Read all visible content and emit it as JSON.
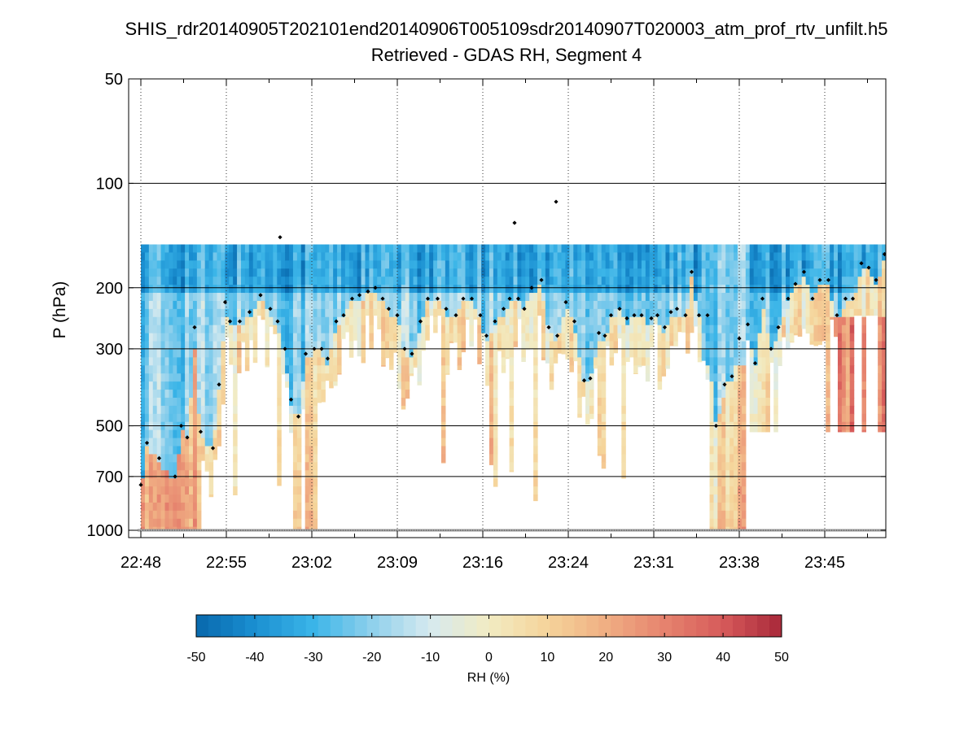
{
  "chart_data": {
    "type": "heatmap",
    "title": "SHIS_rdr20140905T202101end20140906T005109sdr20140907T020003_atm_prof_rtv_unfilt.h5",
    "subtitle": "Retrieved - GDAS RH, Segment 4",
    "ylabel": "P (hPa)",
    "xlabel": "",
    "y_scale": "log",
    "y_reversed": true,
    "ylim": [
      50,
      1050
    ],
    "y_ticks": [
      50,
      100,
      200,
      300,
      500,
      700,
      1000
    ],
    "y_tick_labels": [
      "50",
      "100",
      "200",
      "300",
      "500",
      "700",
      "1000"
    ],
    "x_unit": "minutes since 22:48",
    "xlim": [
      -1,
      61
    ],
    "x_ticks": [
      0,
      7,
      14,
      21,
      28,
      35,
      42,
      49,
      56
    ],
    "x_tick_labels": [
      "22:48",
      "22:55",
      "23:02",
      "23:09",
      "23:16",
      "23:24",
      "23:31",
      "23:38",
      "23:45"
    ],
    "grid": true,
    "field_top_hPa": 150,
    "colorbar": {
      "label": "RH (%)",
      "range": [
        -50,
        50
      ],
      "ticks": [
        "-50",
        "-40",
        "-30",
        "-20",
        "-10",
        "0",
        "10",
        "20",
        "30",
        "40",
        "50"
      ],
      "colors": [
        "#0868ac",
        "#1a8fd1",
        "#3bb5e8",
        "#8fd0ec",
        "#d6eaef",
        "#f2ebc2",
        "#f5d49a",
        "#f0ae83",
        "#e6836e",
        "#d65a5a",
        "#a8283a"
      ]
    },
    "tropopause_pressure_hPa": [
      [
        0,
        740
      ],
      [
        0.5,
        560
      ],
      [
        1.5,
        620
      ],
      [
        2.8,
        700
      ],
      [
        3.3,
        500
      ],
      [
        3.8,
        540
      ],
      [
        4.4,
        260
      ],
      [
        4.9,
        520
      ],
      [
        5.9,
        580
      ],
      [
        6.4,
        380
      ],
      [
        6.9,
        220
      ],
      [
        7.3,
        250
      ],
      [
        8.1,
        250
      ],
      [
        8.9,
        235
      ],
      [
        9.8,
        210
      ],
      [
        10.6,
        230
      ],
      [
        11.2,
        250
      ],
      [
        11.8,
        300
      ],
      [
        12.3,
        420
      ],
      [
        12.9,
        470
      ],
      [
        13.5,
        310
      ],
      [
        14.2,
        300
      ],
      [
        14.8,
        300
      ],
      [
        15.3,
        320
      ],
      [
        16.0,
        250
      ],
      [
        16.6,
        240
      ],
      [
        17.3,
        215
      ],
      [
        17.9,
        210
      ],
      [
        18.6,
        205
      ],
      [
        19.2,
        200
      ],
      [
        19.8,
        215
      ],
      [
        20.3,
        230
      ],
      [
        21.0,
        240
      ],
      [
        21.6,
        300
      ],
      [
        22.2,
        310
      ],
      [
        22.9,
        250
      ],
      [
        23.5,
        215
      ],
      [
        24.3,
        215
      ],
      [
        25.0,
        230
      ],
      [
        25.8,
        240
      ],
      [
        26.4,
        215
      ],
      [
        27.1,
        215
      ],
      [
        27.8,
        240
      ],
      [
        28.3,
        275
      ],
      [
        29.0,
        250
      ],
      [
        29.7,
        230
      ],
      [
        30.2,
        215
      ],
      [
        30.9,
        215
      ],
      [
        31.4,
        230
      ],
      [
        32.0,
        200
      ],
      [
        32.8,
        190
      ],
      [
        33.4,
        260
      ],
      [
        34.1,
        275
      ],
      [
        34.8,
        220
      ],
      [
        35.5,
        250
      ],
      [
        36.3,
        370
      ],
      [
        36.8,
        365
      ],
      [
        37.5,
        270
      ],
      [
        38.0,
        275
      ],
      [
        38.5,
        240
      ],
      [
        39.2,
        230
      ],
      [
        39.8,
        245
      ],
      [
        40.4,
        240
      ],
      [
        41.0,
        240
      ],
      [
        41.8,
        245
      ],
      [
        42.3,
        240
      ],
      [
        42.9,
        260
      ],
      [
        43.4,
        235
      ],
      [
        43.9,
        230
      ],
      [
        44.6,
        240
      ],
      [
        45.1,
        180
      ],
      [
        45.7,
        240
      ],
      [
        46.4,
        240
      ],
      [
        47.1,
        500
      ],
      [
        47.8,
        380
      ],
      [
        48.4,
        360
      ],
      [
        49.0,
        280
      ],
      [
        49.7,
        255
      ],
      [
        50.3,
        330
      ],
      [
        50.9,
        215
      ],
      [
        51.6,
        300
      ],
      [
        52.2,
        260
      ],
      [
        53.0,
        215
      ],
      [
        53.6,
        195
      ],
      [
        54.3,
        180
      ],
      [
        55.0,
        215
      ],
      [
        55.6,
        190
      ],
      [
        56.3,
        190
      ],
      [
        57.0,
        240
      ],
      [
        57.7,
        215
      ],
      [
        58.3,
        215
      ],
      [
        59.0,
        170
      ],
      [
        59.6,
        175
      ],
      [
        60.2,
        190
      ],
      [
        60.9,
        160
      ]
    ],
    "outlier_points_hPa": [
      [
        11.4,
        143
      ],
      [
        30.6,
        130
      ],
      [
        34.0,
        113
      ]
    ]
  }
}
